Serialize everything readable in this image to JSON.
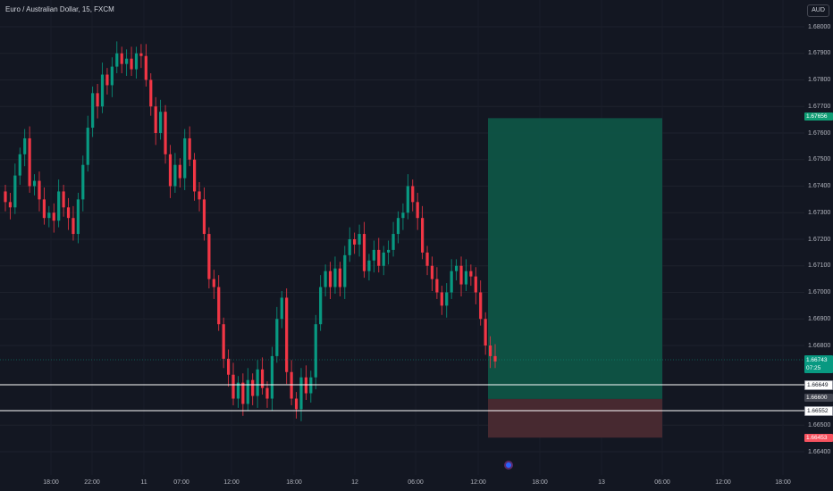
{
  "header": {
    "title": "Euro / Australian Dollar, 15, FXCM"
  },
  "currency_button": "AUD",
  "price_axis": {
    "labels": [
      "1.68000",
      "1.67900",
      "1.67800",
      "1.67700",
      "1.67600",
      "1.67500",
      "1.67400",
      "1.67300",
      "1.67200",
      "1.67100",
      "1.67000",
      "1.66900",
      "1.66800",
      "1.66500",
      "1.66400"
    ]
  },
  "time_axis": {
    "labels": [
      "18:00",
      "22:00",
      "11",
      "07:00",
      "12:00",
      "18:00",
      "12",
      "06:00",
      "12:00",
      "18:00",
      "13",
      "06:00",
      "12:00",
      "18:00"
    ]
  },
  "tags": {
    "target_price": "1.67656",
    "last_price": "1.66743",
    "countdown": "07:25",
    "entry_line": "1.66649",
    "stop_area_top": "1.66600",
    "support_line": "1.66552",
    "stop_price": "1.66453"
  },
  "colors": {
    "background": "#131722",
    "bull": "#089981",
    "bear": "#f23645",
    "target_zone": "#0e5446",
    "stop_zone": "#4a2a31"
  },
  "chart_data": {
    "type": "candlestick",
    "symbol": "Euro / Australian Dollar",
    "interval": "15",
    "ylim": [
      1.6635,
      1.6808
    ],
    "close": [
      1.6734,
      1.6732,
      1.6744,
      1.6752,
      1.6758,
      1.674,
      1.6742,
      1.6735,
      1.6728,
      1.673,
      1.6727,
      1.6738,
      1.6732,
      1.6728,
      1.6722,
      1.6735,
      1.6748,
      1.6762,
      1.6775,
      1.677,
      1.6782,
      1.6778,
      1.6785,
      1.679,
      1.6786,
      1.6788,
      1.6784,
      1.679,
      1.6789,
      1.678,
      1.677,
      1.676,
      1.6768,
      1.6752,
      1.674,
      1.6748,
      1.6743,
      1.6758,
      1.675,
      1.6738,
      1.6735,
      1.6722,
      1.6705,
      1.6702,
      1.6688,
      1.6675,
      1.6669,
      1.666,
      1.6666,
      1.6658,
      1.6667,
      1.6661,
      1.6671,
      1.6664,
      1.666,
      1.6676,
      1.669,
      1.6698,
      1.667,
      1.666,
      1.6656,
      1.6668,
      1.6662,
      1.6668,
      1.6688,
      1.6702,
      1.6708,
      1.6702,
      1.6709,
      1.6702,
      1.6714,
      1.672,
      1.6718,
      1.6722,
      1.6708,
      1.6712,
      1.6716,
      1.671,
      1.6715,
      1.6716,
      1.6722,
      1.6728,
      1.673,
      1.674,
      1.6734,
      1.6728,
      1.6715,
      1.671,
      1.6705,
      1.67,
      1.6695,
      1.67,
      1.6708,
      1.671,
      1.6703,
      1.6708,
      1.6706,
      1.67,
      1.669,
      1.668,
      1.6676,
      1.6674
    ],
    "annotations": [
      {
        "type": "long_position",
        "entry": 1.66649,
        "target": 1.67656,
        "stop": 1.66453
      },
      {
        "type": "horizontal_line",
        "price": 1.66649
      },
      {
        "type": "horizontal_line",
        "price": 1.66552
      }
    ]
  }
}
